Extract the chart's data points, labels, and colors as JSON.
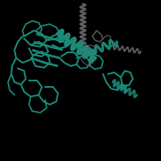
{
  "background_color": "#000000",
  "teal_color": "#1a8a78",
  "gray_color": "#707070",
  "figsize": [
    2.0,
    2.0
  ],
  "dpi": 100,
  "teal_color2": "#15756a"
}
